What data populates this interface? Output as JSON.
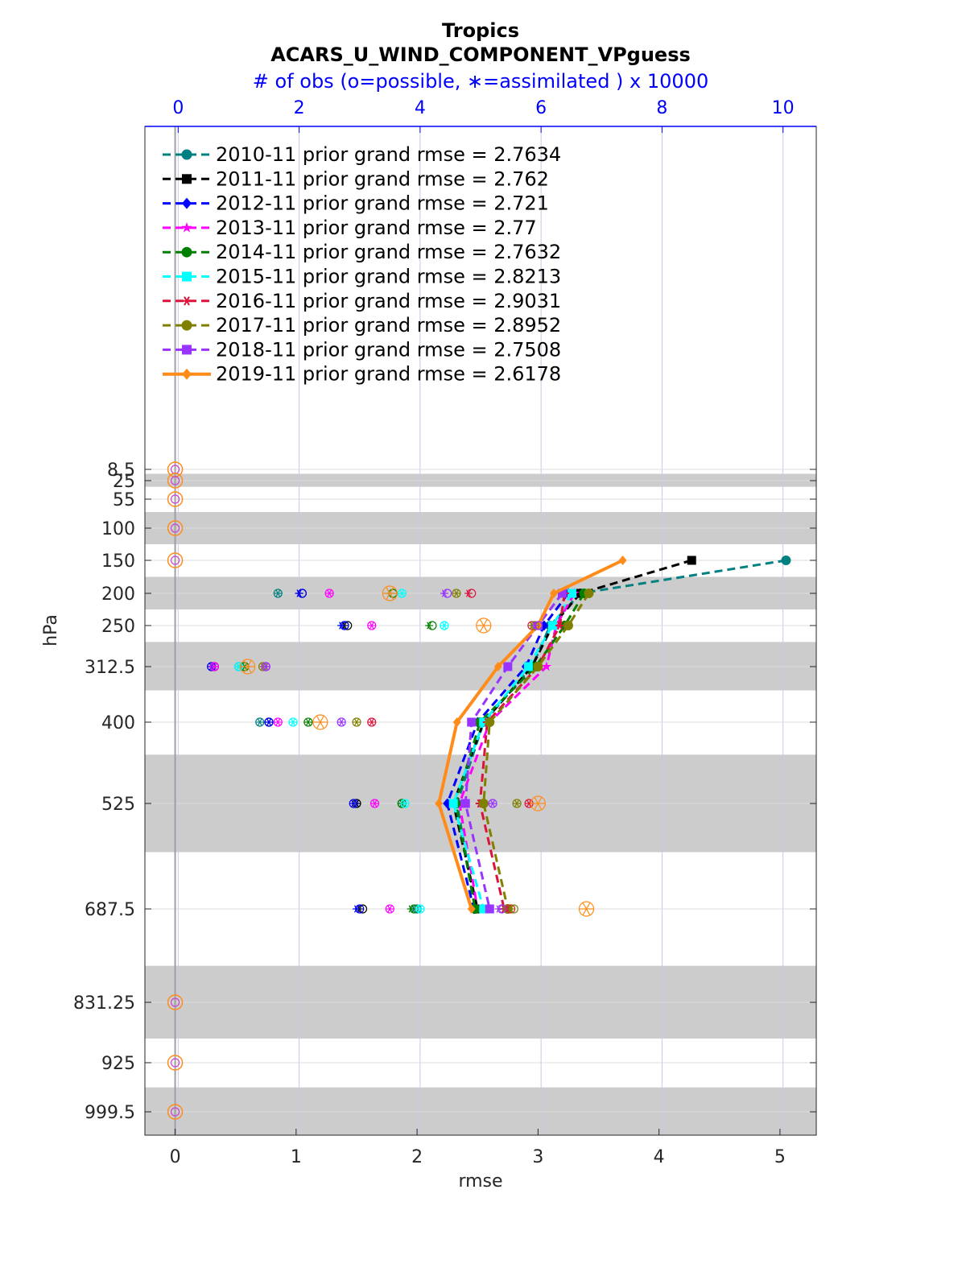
{
  "chart_data": {
    "type": "line",
    "title": "Tropics",
    "subtitle": "ACARS_U_WIND_COMPONENT_VPguess",
    "top_axis_label": "# of obs (o=possible, ∗=assimilated ) x 10000",
    "xlabel": "rmse",
    "ylabel": "hPa",
    "xlim": [
      -0.25,
      5.3
    ],
    "top_xlim": [
      -0.55,
      10.55
    ],
    "x_ticks": [
      "0",
      "1",
      "2",
      "3",
      "4",
      "5"
    ],
    "top_ticks": [
      "0",
      "2",
      "4",
      "6",
      "8",
      "10"
    ],
    "y_ticks": [
      "8.5",
      "25",
      "55",
      "100",
      "150",
      "200",
      "250",
      "312.5",
      "400",
      "525",
      "687.5",
      "831.25",
      "925",
      "999.5"
    ],
    "y_tick_values": [
      8.5,
      25,
      55,
      100,
      150,
      200,
      250,
      312.5,
      400,
      525,
      687.5,
      831.25,
      925,
      999.5
    ],
    "y_reversed": true,
    "grid": true,
    "legend_position": "top-left",
    "bands": [
      [
        15,
        35
      ],
      [
        75,
        125
      ],
      [
        175,
        225
      ],
      [
        275,
        350
      ],
      [
        450,
        600
      ],
      [
        775,
        887.5
      ],
      [
        962.5,
        1040
      ]
    ],
    "plevels": [
      150,
      200,
      250,
      312.5,
      400,
      525,
      687.5
    ],
    "series": [
      {
        "name": "2010-11 prior grand rmse = 2.7634",
        "color": "#008080",
        "marker": "circle",
        "style": "dashed",
        "rmse": [
          5.05,
          3.35,
          3.1,
          2.95,
          2.55,
          2.33,
          2.48
        ],
        "obs_possible": [
          null,
          1.65,
          2.75,
          1.0,
          1.35,
          3.7,
          3.95
        ],
        "obs_assimilated": [
          null,
          1.65,
          2.7,
          1.0,
          1.35,
          3.7,
          3.9
        ]
      },
      {
        "name": "2011-11 prior grand rmse = 2.762",
        "color": "#000000",
        "marker": "square",
        "style": "dashed",
        "rmse": [
          4.27,
          3.35,
          3.12,
          2.95,
          2.55,
          2.3,
          2.5
        ],
        "obs_possible": [
          null,
          2.05,
          2.8,
          0.6,
          1.5,
          2.95,
          3.05
        ],
        "obs_assimilated": [
          null,
          2.0,
          2.75,
          0.6,
          1.5,
          2.95,
          3.0
        ]
      },
      {
        "name": "2012-11 prior grand rmse = 2.721",
        "color": "#0000ff",
        "marker": "diamond",
        "style": "dashed",
        "rmse": [
          null,
          3.25,
          3.05,
          2.9,
          2.5,
          2.25,
          2.47
        ],
        "obs_possible": [
          null,
          2.05,
          2.75,
          0.55,
          1.5,
          2.9,
          3.0
        ],
        "obs_assimilated": [
          null,
          2.0,
          2.7,
          0.55,
          1.5,
          2.9,
          2.95
        ]
      },
      {
        "name": "2013-11 prior grand rmse = 2.77",
        "color": "#ff00ff",
        "marker": "star",
        "style": "dashed",
        "rmse": [
          null,
          3.3,
          3.15,
          3.07,
          2.6,
          2.35,
          2.5
        ],
        "obs_possible": [
          null,
          2.5,
          3.2,
          0.6,
          1.65,
          3.25,
          3.5
        ],
        "obs_assimilated": [
          null,
          2.5,
          3.2,
          0.6,
          1.65,
          3.25,
          3.5
        ]
      },
      {
        "name": "2014-11 prior grand rmse = 2.7632",
        "color": "#008000",
        "marker": "hexagram",
        "style": "dashed",
        "rmse": [
          null,
          3.38,
          3.22,
          2.98,
          2.52,
          2.32,
          2.48
        ],
        "obs_possible": [
          null,
          3.55,
          4.2,
          1.1,
          2.15,
          3.7,
          3.9
        ],
        "obs_assimilated": [
          null,
          3.5,
          4.15,
          1.1,
          2.15,
          3.7,
          3.85
        ]
      },
      {
        "name": "2015-11 prior grand rmse = 2.8213",
        "color": "#00ffff",
        "marker": "square",
        "style": "dashed",
        "rmse": [
          null,
          3.28,
          3.12,
          2.92,
          2.55,
          2.3,
          2.55
        ],
        "obs_possible": [
          null,
          3.7,
          4.4,
          1.0,
          1.9,
          3.75,
          4.0
        ],
        "obs_assimilated": [
          null,
          3.7,
          4.4,
          1.0,
          1.9,
          3.75,
          4.0
        ]
      },
      {
        "name": "2016-11 prior grand rmse = 2.9031",
        "color": "#dc143c",
        "marker": "asterisk",
        "style": "dashed",
        "rmse": [
          null,
          3.22,
          3.18,
          3.0,
          2.58,
          2.52,
          2.72
        ],
        "obs_possible": [
          null,
          4.85,
          5.85,
          1.45,
          3.2,
          5.8,
          5.5
        ],
        "obs_assimilated": [
          null,
          4.8,
          5.85,
          1.45,
          3.2,
          5.8,
          5.45
        ]
      },
      {
        "name": "2017-11 prior grand rmse = 2.8952",
        "color": "#808000",
        "marker": "circle",
        "style": "dashed",
        "rmse": [
          null,
          3.42,
          3.25,
          3.0,
          2.6,
          2.55,
          2.75
        ],
        "obs_possible": [
          null,
          4.6,
          5.9,
          1.4,
          2.95,
          5.6,
          5.55
        ],
        "obs_assimilated": [
          null,
          4.6,
          5.85,
          1.4,
          2.95,
          5.6,
          5.5
        ]
      },
      {
        "name": "2018-11 prior grand rmse = 2.7508",
        "color": "#9933ff",
        "marker": "square",
        "style": "dashed",
        "rmse": [
          null,
          3.2,
          3.0,
          2.75,
          2.45,
          2.4,
          2.6
        ],
        "obs_possible": [
          null,
          4.45,
          5.95,
          1.45,
          2.7,
          5.2,
          5.35
        ],
        "obs_assimilated": [
          null,
          4.4,
          5.9,
          1.45,
          2.7,
          5.2,
          5.3
        ]
      },
      {
        "name": "2019-11 prior grand rmse = 2.6178",
        "color": "#ff8c1a",
        "marker": "diamond",
        "style": "solid",
        "rmse": [
          3.7,
          3.13,
          3.0,
          2.67,
          2.33,
          2.18,
          2.45
        ],
        "obs_possible": [
          null,
          3.5,
          5.05,
          1.15,
          2.35,
          5.95,
          6.75
        ],
        "obs_assimilated": [
          null,
          3.5,
          5.05,
          1.15,
          2.35,
          5.95,
          6.75
        ]
      }
    ],
    "zero_obs_levels": [
      8.5,
      25,
      55,
      100,
      150,
      831.25,
      925,
      999.5
    ]
  },
  "colors": {
    "band": "#cccccc",
    "grid": "#e0e0e0",
    "vgrid": "#c8c8e8",
    "axis_top": "#0000ff"
  }
}
